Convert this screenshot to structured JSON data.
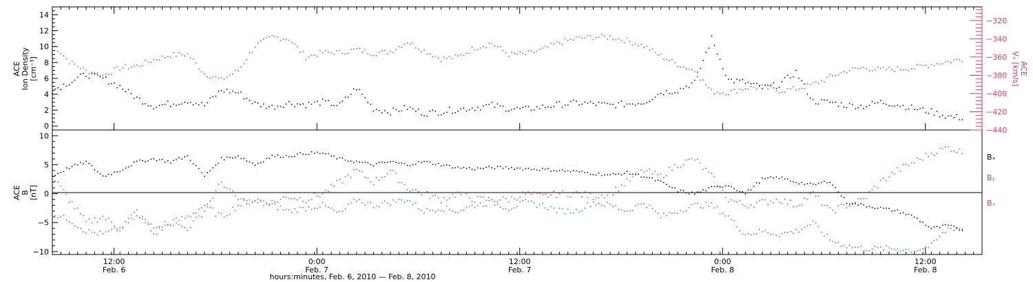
{
  "colors": {
    "black": "#000000",
    "red": "#e8336a",
    "blue": "#1f7fe0"
  },
  "chart_data": [
    {
      "type": "scatter",
      "panel": "top",
      "left_ylabel": [
        "ACE",
        "Ion Density",
        "[cm⁻³]"
      ],
      "right_ylabel": [
        "ACE",
        "Vₓ [km/s]"
      ],
      "left_ylim": [
        -0.5,
        15
      ],
      "left_yticks": [
        0,
        2,
        4,
        6,
        8,
        10,
        12,
        14
      ],
      "right_ylim": [
        -440,
        -305
      ],
      "right_yticks": [
        -320,
        -340,
        -360,
        -380,
        -400,
        -420,
        -440
      ],
      "x_range_hours": [
        0,
        110
      ],
      "series": [
        {
          "name": "Ion Density",
          "axis": "left",
          "color": "#000000",
          "x": [
            0,
            2,
            4,
            6,
            8,
            10,
            12,
            14,
            16,
            18,
            20,
            22,
            24,
            26,
            28,
            30,
            32,
            34,
            36,
            38,
            40,
            42,
            44,
            46,
            48,
            50,
            52,
            54,
            56,
            58,
            60,
            62,
            64,
            66,
            68,
            70,
            72,
            74,
            76,
            78,
            80,
            82,
            84,
            86,
            88,
            90,
            92,
            94,
            96,
            98,
            100,
            102,
            104,
            106,
            108
          ],
          "values": [
            4.5,
            5.5,
            6.5,
            6.0,
            5.0,
            3.5,
            2.5,
            2.8,
            3.2,
            2.6,
            4.5,
            4.2,
            2.8,
            2.4,
            2.9,
            2.7,
            3.0,
            2.6,
            4.8,
            2.2,
            1.8,
            2.3,
            1.6,
            1.8,
            2.1,
            2.3,
            2.6,
            2.2,
            2.1,
            2.4,
            2.7,
            2.9,
            2.8,
            2.6,
            2.8,
            3.0,
            4.2,
            4.5,
            5.5,
            11.0,
            5.8,
            5.5,
            4.8,
            5.2,
            6.8,
            3.1,
            3.0,
            2.6,
            2.5,
            3.0,
            2.7,
            2.2,
            1.8,
            1.2,
            1.0
          ]
        },
        {
          "name": "Vx",
          "axis": "right",
          "color": "#e8336a",
          "x": [
            0,
            2,
            4,
            6,
            8,
            10,
            12,
            14,
            16,
            18,
            20,
            22,
            24,
            26,
            28,
            30,
            32,
            34,
            36,
            38,
            40,
            42,
            44,
            46,
            48,
            50,
            52,
            54,
            56,
            58,
            60,
            62,
            64,
            66,
            68,
            70,
            72,
            74,
            76,
            78,
            80,
            82,
            84,
            86,
            88,
            90,
            92,
            94,
            96,
            98,
            100,
            102,
            104,
            106,
            108
          ],
          "values": [
            -345,
            -365,
            -375,
            -380,
            -372,
            -370,
            -363,
            -358,
            -357,
            -378,
            -385,
            -375,
            -348,
            -338,
            -340,
            -360,
            -355,
            -355,
            -352,
            -356,
            -354,
            -343,
            -353,
            -362,
            -360,
            -350,
            -345,
            -357,
            -357,
            -352,
            -344,
            -340,
            -338,
            -338,
            -342,
            -348,
            -359,
            -368,
            -375,
            -398,
            -399,
            -394,
            -393,
            -397,
            -395,
            -390,
            -382,
            -375,
            -372,
            -374,
            -373,
            -372,
            -368,
            -365,
            -362
          ]
        }
      ]
    },
    {
      "type": "scatter",
      "panel": "bottom",
      "left_ylabel": [
        "ACE",
        "B",
        "[nT]"
      ],
      "ylim": [
        -10.5,
        11
      ],
      "yticks": [
        -10,
        -5,
        0,
        5,
        10
      ],
      "x_range_hours": [
        0,
        110
      ],
      "series": [
        {
          "name": "Bₓ",
          "color": "#000000",
          "x": [
            0,
            2,
            4,
            6,
            8,
            10,
            12,
            14,
            16,
            18,
            20,
            22,
            24,
            26,
            28,
            30,
            32,
            34,
            36,
            38,
            40,
            42,
            44,
            46,
            48,
            50,
            52,
            54,
            56,
            58,
            60,
            62,
            64,
            66,
            68,
            70,
            72,
            74,
            76,
            78,
            80,
            82,
            84,
            86,
            88,
            90,
            92,
            94,
            96,
            98,
            100,
            102,
            104,
            106,
            108
          ],
          "values": [
            3,
            4.5,
            5.5,
            3,
            4,
            5.5,
            6,
            5.5,
            6.5,
            3,
            6,
            6.5,
            5,
            6.5,
            6.5,
            7,
            7,
            6,
            5.5,
            5,
            5.5,
            5,
            5.5,
            5,
            4.5,
            4.3,
            4.5,
            4.5,
            4.3,
            4.2,
            4,
            3.8,
            3.5,
            3.2,
            3.6,
            3,
            2,
            0.5,
            0,
            1,
            1.5,
            0,
            2.5,
            2.8,
            2,
            1.5,
            2.2,
            -1.5,
            -2,
            -2.5,
            -3,
            -4,
            -6,
            -5.5,
            -6.5
          ]
        },
        {
          "name": "Bᵧ",
          "color": "#1f7fe0",
          "x": [
            0,
            2,
            4,
            6,
            8,
            10,
            12,
            14,
            16,
            18,
            20,
            22,
            24,
            26,
            28,
            30,
            32,
            34,
            36,
            38,
            40,
            42,
            44,
            46,
            48,
            50,
            52,
            54,
            56,
            58,
            60,
            62,
            64,
            66,
            68,
            70,
            72,
            74,
            76,
            78,
            80,
            82,
            84,
            86,
            88,
            90,
            92,
            94,
            96,
            98,
            100,
            102,
            104,
            106,
            108
          ],
          "values": [
            -3.5,
            -4.5,
            -6.5,
            -7,
            -6,
            -4,
            -5.5,
            -5,
            -6,
            -3,
            2,
            -1,
            -1.5,
            -2,
            -3,
            -2.5,
            -2,
            -3.5,
            -1,
            -2,
            -1.5,
            -1,
            -3,
            -2.5,
            -3,
            -2,
            -1.5,
            -2.5,
            -1.5,
            -2,
            -3,
            -3,
            -1.5,
            -2,
            -3,
            -1.5,
            -4,
            -3,
            -2,
            -2,
            -4,
            -7,
            -6.5,
            -7,
            -6.5,
            -5,
            -8,
            -9,
            -9.5,
            -9.5,
            -9.5,
            -9.8,
            -9,
            -6,
            -6
          ]
        },
        {
          "name": "Bₓ",
          "color": "#e8336a",
          "x": [
            0,
            2,
            4,
            6,
            8,
            10,
            12,
            14,
            16,
            18,
            20,
            22,
            24,
            26,
            28,
            30,
            32,
            34,
            36,
            38,
            40,
            42,
            44,
            46,
            48,
            50,
            52,
            54,
            56,
            58,
            60,
            62,
            64,
            66,
            68,
            70,
            72,
            74,
            76,
            78,
            80,
            82,
            84,
            86,
            88,
            90,
            92,
            94,
            96,
            98,
            100,
            102,
            104,
            106,
            108
          ],
          "values": [
            3,
            -1,
            -5,
            -4,
            -6,
            -3,
            -7,
            -5,
            -4,
            -2,
            -4,
            -2,
            -1,
            -1.5,
            -0.5,
            -1,
            0,
            2,
            4,
            2,
            4,
            1,
            0,
            -1,
            0,
            -1,
            -1,
            -1,
            0,
            -0.5,
            0,
            0,
            -0.5,
            0,
            2,
            4,
            3,
            5,
            6,
            3,
            -1,
            -2,
            -1.5,
            -1,
            -2,
            0,
            -3,
            -2,
            -1,
            2,
            4,
            5.5,
            7,
            8,
            7
          ]
        }
      ]
    }
  ],
  "legend": {
    "bx": "Bₓ",
    "by": "Bᵧ",
    "bz": "Bₓ"
  },
  "x_ticks": [
    {
      "hour": 7.3,
      "time": "12:00",
      "date": "Feb. 6"
    },
    {
      "hour": 31.3,
      "time": "0:00",
      "date": "Feb. 7"
    },
    {
      "hour": 55.3,
      "time": "12:00",
      "date": "Feb. 7"
    },
    {
      "hour": 79.3,
      "time": "0:00",
      "date": "Feb. 8"
    },
    {
      "hour": 103.3,
      "time": "12:00",
      "date": "Feb. 8"
    }
  ],
  "xlabel": "hours:minutes, Feb.  6, 2010 — Feb.  8, 2010"
}
